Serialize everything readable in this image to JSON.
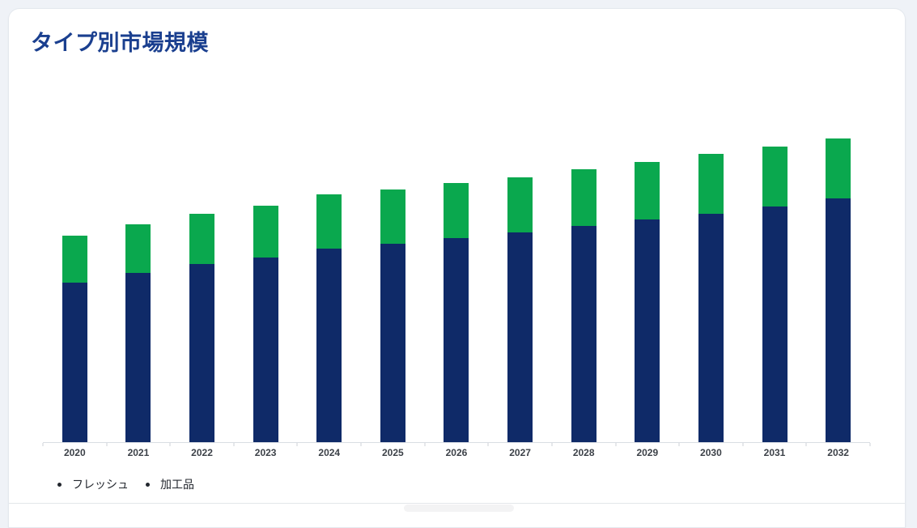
{
  "header": {
    "title": "タイプ別市場規模",
    "title_color": "#1a3f8f"
  },
  "legend": {
    "items": [
      {
        "label": "フレッシュ",
        "marker": "bullet-dot",
        "marker_color": "#23272e"
      },
      {
        "label": "加工品",
        "marker": "bullet-dot",
        "marker_color": "#23272e"
      }
    ]
  },
  "chart_data": {
    "type": "bar",
    "stacked": true,
    "title": "タイプ別市場規模",
    "categories": [
      "2020",
      "2021",
      "2022",
      "2023",
      "2024",
      "2025",
      "2026",
      "2027",
      "2028",
      "2029",
      "2030",
      "2031",
      "2032"
    ],
    "series": [
      {
        "name": "フレッシュ",
        "key": "fresh",
        "color": "#0f2a68",
        "values": [
          197,
          209,
          220,
          228,
          239,
          245,
          252,
          259,
          267,
          275,
          282,
          291,
          301
        ]
      },
      {
        "name": "加工品",
        "key": "processed",
        "color": "#0aa84e",
        "values": [
          58,
          60,
          62,
          64,
          67,
          67,
          68,
          68,
          70,
          71,
          74,
          74,
          74
        ]
      }
    ],
    "units": "relative (no value axis shown)",
    "xlabel": "",
    "ylabel": "",
    "ylim": [
      0,
      420
    ],
    "grid": false,
    "y_axis_visible": false,
    "legend_position": "bottom-left",
    "axis_color": "#d9dde3",
    "tick_color": "#ccd1d7",
    "label_color": "#3c4148"
  }
}
